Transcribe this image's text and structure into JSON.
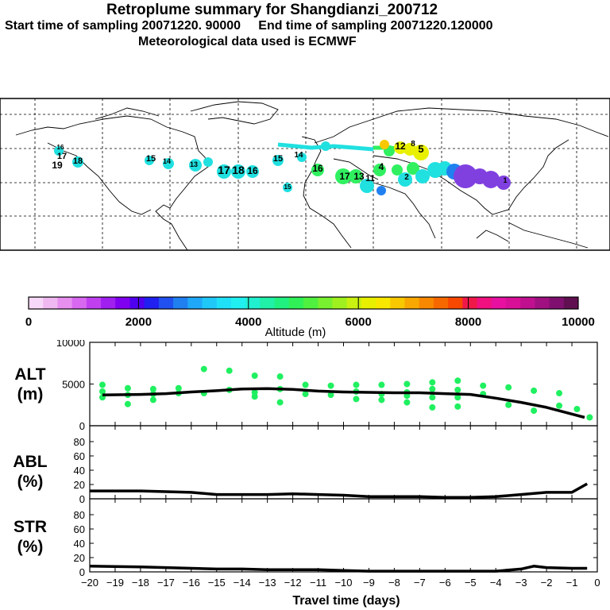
{
  "header": {
    "title": "Retroplume summary for Shangdianzi_200712",
    "sampling": "Start time of sampling 20071220. 90000     End time of sampling 20071220.120000",
    "met": "Meteorological data used is ECMWF"
  },
  "colorbar": {
    "label": "Altitude (m)",
    "min": 0,
    "max": 10000,
    "tick_labels": [
      "0",
      "2000",
      "4000",
      "6000",
      "8000",
      "10000"
    ],
    "colors": [
      "#f8d8f8",
      "#f0b8f0",
      "#e890f0",
      "#d868f0",
      "#c040f0",
      "#a020f0",
      "#8000f0",
      "#5000f0",
      "#2020f0",
      "#2050f0",
      "#2080f0",
      "#20a8f8",
      "#20c8f8",
      "#20e0f8",
      "#20f0f0",
      "#20f0d0",
      "#20f0a8",
      "#20f080",
      "#30f058",
      "#50f040",
      "#78f030",
      "#a0f020",
      "#c8f010",
      "#e8f000",
      "#f8e800",
      "#f8c800",
      "#f8a800",
      "#f88800",
      "#f86800",
      "#f84800",
      "#f01848",
      "#f01080",
      "#e810a0",
      "#d81098",
      "#c01090",
      "#a01080",
      "#801070",
      "#601050"
    ]
  },
  "map": {
    "plume_colors": {
      "low": "#8040e0",
      "mid_low": "#2080f0",
      "mid": "#20e0e0",
      "mid_high": "#30f060",
      "high": "#e8f000",
      "top": "#f8c800"
    },
    "day_labels": [
      {
        "t": "19",
        "c": "#20e0d8"
      },
      {
        "t": "17",
        "c": "#20e0d8"
      },
      {
        "t": "16",
        "c": "#20e0d8"
      },
      {
        "t": "18",
        "c": "#20e0d8"
      },
      {
        "t": "15",
        "c": "#20e0d8"
      },
      {
        "t": "14",
        "c": "#20e0d8"
      },
      {
        "t": "13",
        "c": "#20e0d8"
      },
      {
        "t": "17",
        "c": "#20e0e8"
      },
      {
        "t": "18",
        "c": "#20e0e8"
      },
      {
        "t": "16",
        "c": "#20e0e8"
      },
      {
        "t": "15",
        "c": "#20e0d8"
      },
      {
        "t": "15",
        "c": "#30f060"
      },
      {
        "t": "14",
        "c": "#30f060"
      },
      {
        "t": "16",
        "c": "#30f060"
      },
      {
        "t": "17",
        "c": "#30f060"
      },
      {
        "t": "13",
        "c": "#e8f000"
      },
      {
        "t": "11",
        "c": "#e8f000"
      },
      {
        "t": "12",
        "c": "#e8f000"
      },
      {
        "t": "8",
        "c": "#30f060"
      },
      {
        "t": "5",
        "c": "#20e0e8"
      },
      {
        "t": "4",
        "c": "#2080f0"
      },
      {
        "t": "2",
        "c": "#8040e0"
      },
      {
        "t": "1",
        "c": "#8040e0"
      }
    ]
  },
  "chart_data": [
    {
      "type": "line",
      "name": "ALT",
      "ylabel": "ALT",
      "yunit": "(m)",
      "ylim": [
        0,
        10000
      ],
      "yticks": [
        "10000",
        "5000",
        "0"
      ],
      "x": [
        -19.5,
        -18,
        -17,
        -16,
        -15,
        -14,
        -13,
        -12,
        -11,
        -10,
        -9,
        -8,
        -7,
        -6,
        -5,
        -4,
        -3,
        -2,
        -1,
        -0.5
      ],
      "mean_line": [
        3700,
        3750,
        3850,
        4050,
        4200,
        4400,
        4450,
        4350,
        4150,
        4050,
        4000,
        3950,
        3950,
        3850,
        3750,
        3300,
        2800,
        2200,
        1400,
        1000
      ],
      "points": [
        {
          "x": -19.5,
          "y": 4900
        },
        {
          "x": -19.5,
          "y": 4100
        },
        {
          "x": -19.5,
          "y": 3400
        },
        {
          "x": -18.5,
          "y": 4500
        },
        {
          "x": -18.5,
          "y": 3700
        },
        {
          "x": -18.5,
          "y": 2600
        },
        {
          "x": -17.5,
          "y": 4400
        },
        {
          "x": -17.5,
          "y": 3800
        },
        {
          "x": -17.5,
          "y": 3100
        },
        {
          "x": -16.5,
          "y": 4500
        },
        {
          "x": -16.5,
          "y": 3900
        },
        {
          "x": -15.5,
          "y": 6800
        },
        {
          "x": -15.5,
          "y": 3900
        },
        {
          "x": -14.5,
          "y": 6600
        },
        {
          "x": -14.5,
          "y": 4300
        },
        {
          "x": -13.5,
          "y": 6000
        },
        {
          "x": -13.5,
          "y": 4000
        },
        {
          "x": -13.5,
          "y": 3500
        },
        {
          "x": -12.5,
          "y": 5900
        },
        {
          "x": -12.5,
          "y": 4400
        },
        {
          "x": -12.5,
          "y": 2800
        },
        {
          "x": -11.5,
          "y": 4900
        },
        {
          "x": -11.5,
          "y": 3800
        },
        {
          "x": -10.5,
          "y": 4800
        },
        {
          "x": -10.5,
          "y": 3700
        },
        {
          "x": -9.5,
          "y": 4900
        },
        {
          "x": -9.5,
          "y": 4100
        },
        {
          "x": -9.5,
          "y": 3200
        },
        {
          "x": -8.5,
          "y": 4900
        },
        {
          "x": -8.5,
          "y": 3800
        },
        {
          "x": -8.5,
          "y": 3100
        },
        {
          "x": -7.5,
          "y": 5000
        },
        {
          "x": -7.5,
          "y": 4000
        },
        {
          "x": -7.5,
          "y": 3600
        },
        {
          "x": -7.5,
          "y": 2800
        },
        {
          "x": -6.5,
          "y": 5200
        },
        {
          "x": -6.5,
          "y": 4400
        },
        {
          "x": -6.5,
          "y": 3400
        },
        {
          "x": -6.5,
          "y": 2200
        },
        {
          "x": -5.5,
          "y": 5400
        },
        {
          "x": -5.5,
          "y": 4300
        },
        {
          "x": -5.5,
          "y": 3400
        },
        {
          "x": -5.5,
          "y": 2300
        },
        {
          "x": -4.5,
          "y": 4800
        },
        {
          "x": -4.5,
          "y": 3800
        },
        {
          "x": -3.5,
          "y": 4600
        },
        {
          "x": -3.5,
          "y": 2500
        },
        {
          "x": -2.5,
          "y": 4200
        },
        {
          "x": -2.5,
          "y": 1800
        },
        {
          "x": -1.5,
          "y": 3900
        },
        {
          "x": -1.5,
          "y": 2400
        },
        {
          "x": -0.8,
          "y": 2000
        },
        {
          "x": -0.3,
          "y": 1000
        }
      ]
    },
    {
      "type": "line",
      "name": "ABL",
      "ylabel": "ABL",
      "yunit": "(%)",
      "ylim": [
        0,
        100
      ],
      "yticks": [
        "80",
        "60",
        "40",
        "20",
        "0"
      ],
      "x": [
        -20,
        -18,
        -17,
        -16,
        -15,
        -14,
        -13,
        -12,
        -11,
        -10,
        -9,
        -8,
        -7,
        -6,
        -5,
        -4,
        -3,
        -2,
        -1,
        -0.4
      ],
      "values": [
        11,
        11,
        10,
        9,
        6,
        6,
        6,
        7,
        6,
        5,
        3,
        3,
        3,
        2,
        2,
        3,
        6,
        9,
        9,
        21
      ]
    },
    {
      "type": "line",
      "name": "STR",
      "ylabel": "STR",
      "yunit": "(%)",
      "ylim": [
        0,
        100
      ],
      "yticks": [
        "80",
        "60",
        "40",
        "20",
        "0"
      ],
      "x": [
        -20,
        -18,
        -17,
        -16,
        -15,
        -14,
        -13,
        -12,
        -11,
        -10,
        -9,
        -8,
        -7,
        -6,
        -5,
        -4,
        -3,
        -2.5,
        -2,
        -1,
        -0.4
      ],
      "values": [
        8,
        7,
        6,
        5,
        4,
        4,
        3,
        3,
        3,
        2,
        1,
        1,
        1,
        1,
        1,
        1,
        4,
        8,
        6,
        5,
        5
      ]
    }
  ],
  "xaxis": {
    "tick_labels": [
      "−20",
      "−19",
      "−18",
      "−17",
      "−16",
      "−15",
      "−14",
      "−13",
      "−12",
      "−11",
      "−10",
      "−9",
      "−8",
      "−7",
      "−6",
      "−5",
      "−4",
      "−3",
      "−2",
      "−1",
      "0"
    ],
    "label": "Travel time (days)"
  }
}
